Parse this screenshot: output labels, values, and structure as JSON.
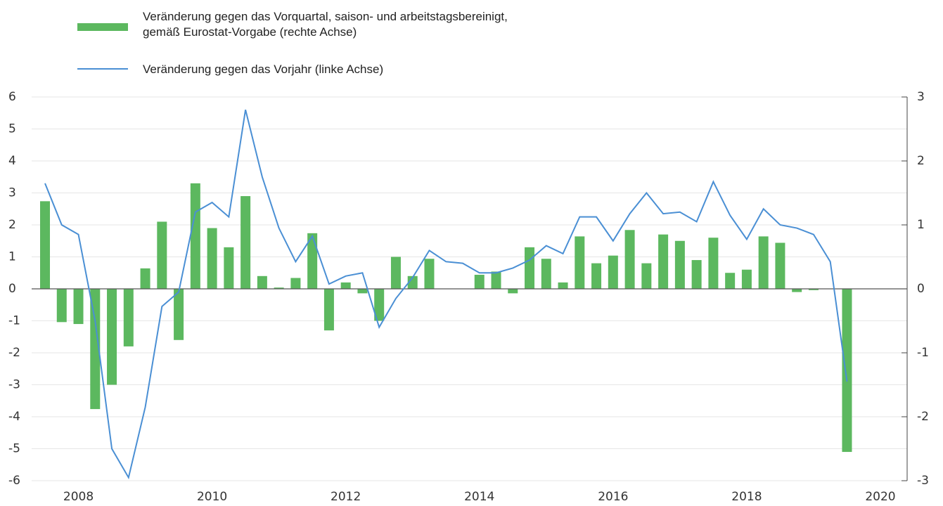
{
  "chart_data": {
    "type": "bar_line",
    "x": [
      2008,
      2008.25,
      2008.5,
      2008.75,
      2009,
      2009.25,
      2009.5,
      2009.75,
      2010,
      2010.25,
      2010.5,
      2010.75,
      2011,
      2011.25,
      2011.5,
      2011.75,
      2012,
      2012.25,
      2012.5,
      2012.75,
      2013,
      2013.25,
      2013.5,
      2013.75,
      2014,
      2014.25,
      2014.5,
      2014.75,
      2015,
      2015.25,
      2015.5,
      2015.75,
      2016,
      2016.25,
      2016.5,
      2016.75,
      2017,
      2017.25,
      2017.5,
      2017.75,
      2018,
      2018.25,
      2018.5,
      2018.75,
      2019,
      2019.25,
      2019.5,
      2019.75,
      2020
    ],
    "series": [
      {
        "name": "Veränderung gegen das Vorquartal, saison- und arbeitstagsbereinigt,\ngemäß Eurostat-Vorgabe (rechte Achse)",
        "type": "bar",
        "axis": "y2",
        "color": "#5cb85f",
        "values": [
          1.37,
          -0.52,
          -0.55,
          -1.88,
          -1.5,
          -0.9,
          0.32,
          1.05,
          -0.8,
          1.65,
          0.95,
          0.65,
          1.45,
          0.2,
          0.02,
          0.17,
          0.87,
          -0.65,
          0.1,
          -0.07,
          -0.5,
          0.5,
          0.2,
          0.47,
          0.0,
          0.0,
          0.22,
          0.27,
          -0.07,
          0.65,
          0.47,
          0.1,
          0.82,
          0.4,
          0.52,
          0.92,
          0.4,
          0.85,
          0.75,
          0.45,
          0.8,
          0.25,
          0.3,
          0.82,
          0.72,
          -0.05,
          -0.02,
          0.0,
          -2.55
        ]
      },
      {
        "name": "Veränderung gegen das Vorjahr (linke Achse)",
        "type": "line",
        "axis": "y",
        "color": "#4a8fd4",
        "values": [
          3.3,
          2.0,
          1.7,
          -1.0,
          -5.0,
          -5.9,
          -3.7,
          -0.55,
          -0.1,
          2.4,
          2.7,
          2.25,
          5.6,
          3.5,
          1.9,
          0.85,
          1.65,
          0.15,
          0.4,
          0.5,
          -1.2,
          -0.3,
          0.35,
          1.2,
          0.85,
          0.8,
          0.5,
          0.5,
          0.65,
          0.9,
          1.35,
          1.1,
          2.25,
          2.25,
          1.5,
          2.35,
          3.0,
          2.35,
          2.4,
          2.1,
          3.35,
          2.3,
          1.55,
          2.5,
          2.0,
          1.9,
          1.7,
          0.85,
          -2.9
        ]
      }
    ],
    "xlim": [
      2007.8,
      2020.9
    ],
    "xticks": [
      {
        "value": 2008.5,
        "label": "2008"
      },
      {
        "value": 2010.5,
        "label": "2010"
      },
      {
        "value": 2012.5,
        "label": "2012"
      },
      {
        "value": 2014.5,
        "label": "2014"
      },
      {
        "value": 2016.5,
        "label": "2016"
      },
      {
        "value": 2018.5,
        "label": "2018"
      },
      {
        "value": 2020.5,
        "label": "2020"
      }
    ],
    "ylim": [
      -6,
      6
    ],
    "yticks": [
      -6,
      -5,
      -4,
      -3,
      -2,
      -1,
      0,
      1,
      2,
      3,
      4,
      5,
      6
    ],
    "y2lim": [
      -3,
      3
    ],
    "y2ticks": [
      -3,
      -2,
      -1,
      0,
      1,
      2,
      3
    ],
    "grid": true
  }
}
